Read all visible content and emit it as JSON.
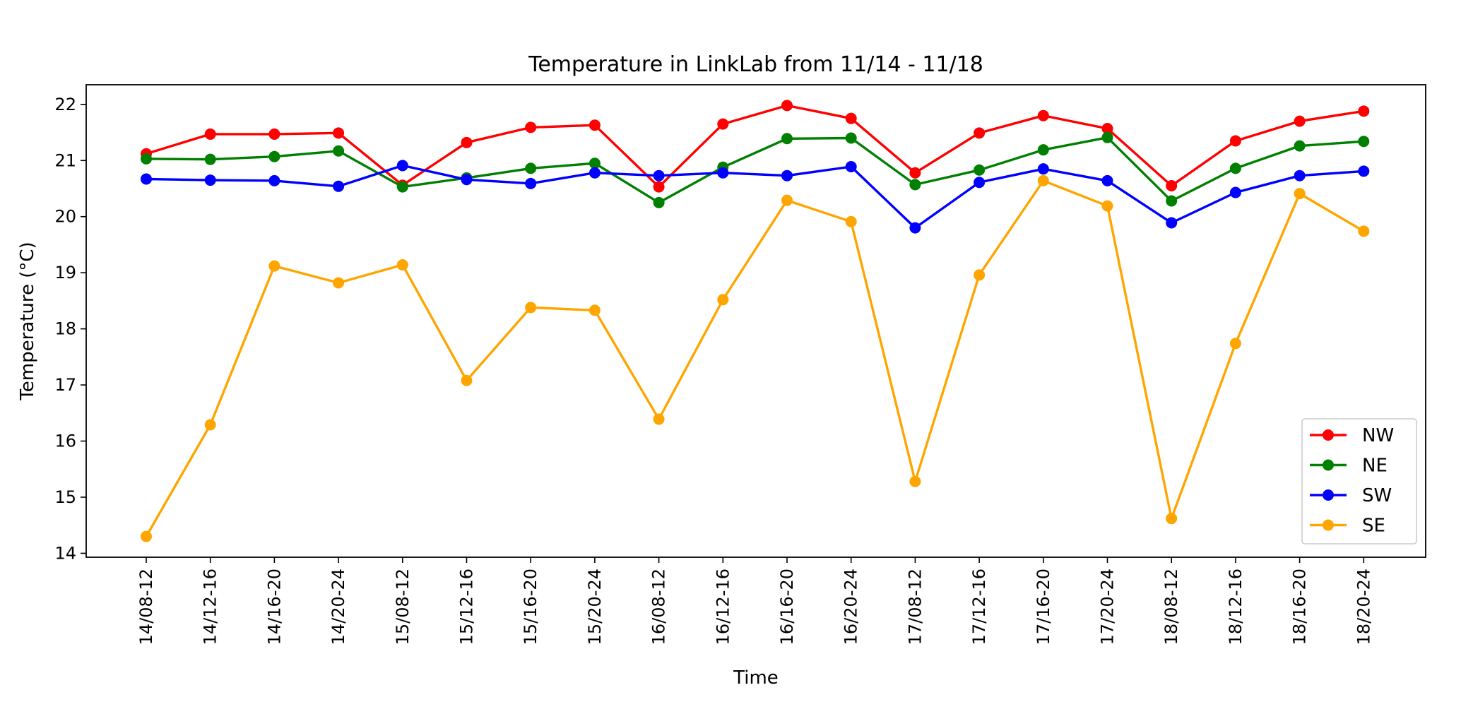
{
  "chart_data": {
    "type": "line",
    "title": "Temperature in LinkLab from 11/14 - 11/18",
    "xlabel": "Time",
    "ylabel": "Temperature (°C)",
    "ylim": [
      13.93,
      22.35
    ],
    "yticks": [
      14,
      15,
      16,
      17,
      18,
      19,
      20,
      21,
      22
    ],
    "grid": false,
    "legend_position": "lower-right",
    "categories": [
      "14/08-12",
      "14/12-16",
      "14/16-20",
      "14/20-24",
      "15/08-12",
      "15/12-16",
      "15/16-20",
      "15/20-24",
      "16/08-12",
      "16/12-16",
      "16/16-20",
      "16/20-24",
      "17/08-12",
      "17/12-16",
      "17/16-20",
      "17/20-24",
      "18/08-12",
      "18/12-16",
      "18/16-20",
      "18/20-24"
    ],
    "series": [
      {
        "name": "NW",
        "color": "#ff0000",
        "values": [
          21.12,
          21.47,
          21.47,
          21.49,
          20.56,
          21.32,
          21.59,
          21.63,
          20.53,
          21.65,
          21.98,
          21.75,
          20.78,
          21.49,
          21.8,
          21.57,
          20.55,
          21.35,
          21.7,
          21.88
        ]
      },
      {
        "name": "NE",
        "color": "#008000",
        "values": [
          21.03,
          21.02,
          21.07,
          21.17,
          20.53,
          20.69,
          20.86,
          20.95,
          20.25,
          20.88,
          21.39,
          21.4,
          20.57,
          20.83,
          21.19,
          21.41,
          20.28,
          20.86,
          21.26,
          21.34
        ]
      },
      {
        "name": "SW",
        "color": "#0000ff",
        "values": [
          20.67,
          20.65,
          20.64,
          20.54,
          20.91,
          20.66,
          20.59,
          20.78,
          20.73,
          20.78,
          20.73,
          20.89,
          19.8,
          20.61,
          20.85,
          20.64,
          19.89,
          20.43,
          20.73,
          20.81
        ]
      },
      {
        "name": "SE",
        "color": "#ffa500",
        "values": [
          14.3,
          16.29,
          19.12,
          18.82,
          19.14,
          17.08,
          18.38,
          18.33,
          16.39,
          18.52,
          20.29,
          19.91,
          15.28,
          18.96,
          20.64,
          20.19,
          14.62,
          17.74,
          20.41,
          19.74
        ]
      }
    ]
  }
}
